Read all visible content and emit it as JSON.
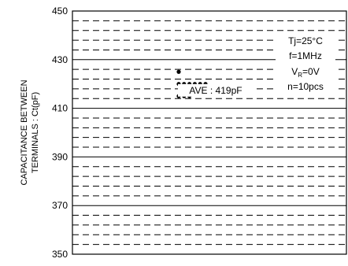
{
  "chart_data": {
    "type": "scatter",
    "title": "",
    "xlabel": "",
    "ylabel_lines": [
      "CAPACITANCE BETWEEN",
      "TERMINALS : Ct(pF)"
    ],
    "ylim": [
      350,
      450
    ],
    "y_ticks": [
      350,
      370,
      390,
      410,
      430,
      450
    ],
    "minor_step": 4,
    "grid": true,
    "conditions": {
      "tj_prefix": "Tj=25°C",
      "freq": "f=1MHz",
      "vr_main": "V",
      "vr_sub": "R",
      "vr_value": "=0V",
      "count": "n=10pcs"
    },
    "average_label": "AVE : 419pF",
    "average_value": 419,
    "series": [
      {
        "values": [
          425,
          420,
          420,
          420,
          420,
          420,
          420,
          415,
          415,
          415
        ],
        "x_slot": [
          0,
          0,
          1,
          2,
          3,
          4,
          5,
          0,
          1,
          2
        ]
      }
    ],
    "colors": {
      "axis": "#000000",
      "marker": "#000000",
      "grid": "#000000"
    }
  }
}
